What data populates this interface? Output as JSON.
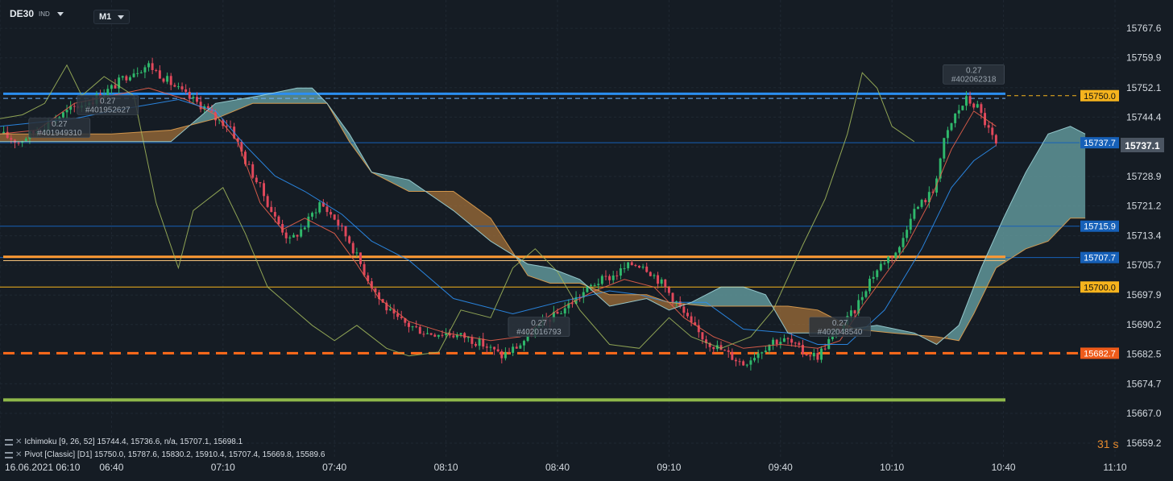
{
  "header": {
    "symbol": "DE30",
    "instrument_type": "IND",
    "timeframe": "M1"
  },
  "chart_data": {
    "type": "candlestick",
    "ylim": [
      15655.0,
      15775.0
    ],
    "y_ticks": [
      "15767.6",
      "15759.9",
      "15752.1",
      "15744.4",
      "15736.6",
      "15728.9",
      "15721.2",
      "15713.4",
      "15705.7",
      "15697.9",
      "15690.2",
      "15682.5",
      "15674.7",
      "15667.0",
      "15659.2"
    ],
    "x_ticks": [
      "16.06.2021 06:10",
      "06:40",
      "07:10",
      "07:40",
      "08:10",
      "08:40",
      "09:10",
      "09:40",
      "10:10",
      "10:40",
      "11:10"
    ],
    "x_axis_minutes": [
      0,
      300
    ],
    "x_tick_minutes": [
      0,
      30,
      60,
      90,
      120,
      150,
      180,
      210,
      240,
      270,
      300
    ],
    "close_path": [
      [
        0,
        15740
      ],
      [
        5,
        15738
      ],
      [
        10,
        15741
      ],
      [
        15,
        15744
      ],
      [
        20,
        15747
      ],
      [
        25,
        15749
      ],
      [
        30,
        15752
      ],
      [
        35,
        15756
      ],
      [
        40,
        15758
      ],
      [
        45,
        15754
      ],
      [
        50,
        15750
      ],
      [
        55,
        15747
      ],
      [
        58,
        15744
      ],
      [
        62,
        15742
      ],
      [
        66,
        15733
      ],
      [
        70,
        15726
      ],
      [
        74,
        15718
      ],
      [
        78,
        15712
      ],
      [
        82,
        15716
      ],
      [
        86,
        15722
      ],
      [
        90,
        15718
      ],
      [
        94,
        15712
      ],
      [
        98,
        15704
      ],
      [
        102,
        15697
      ],
      [
        106,
        15692
      ],
      [
        110,
        15690
      ],
      [
        115,
        15688
      ],
      [
        120,
        15688
      ],
      [
        125,
        15687
      ],
      [
        130,
        15685
      ],
      [
        135,
        15682
      ],
      [
        140,
        15685
      ],
      [
        145,
        15690
      ],
      [
        150,
        15693
      ],
      [
        155,
        15697
      ],
      [
        160,
        15701
      ],
      [
        165,
        15703
      ],
      [
        170,
        15706
      ],
      [
        173,
        15706
      ],
      [
        178,
        15701
      ],
      [
        182,
        15696
      ],
      [
        186,
        15690
      ],
      [
        190,
        15686
      ],
      [
        195,
        15683
      ],
      [
        200,
        15680
      ],
      [
        204,
        15683
      ],
      [
        208,
        15686
      ],
      [
        212,
        15686
      ],
      [
        216,
        15683
      ],
      [
        220,
        15682
      ],
      [
        223,
        15686
      ],
      [
        226,
        15689
      ],
      [
        230,
        15694
      ],
      [
        234,
        15702
      ],
      [
        238,
        15707
      ],
      [
        242,
        15710
      ],
      [
        245,
        15719
      ],
      [
        248,
        15722
      ],
      [
        251,
        15725
      ],
      [
        254,
        15738
      ],
      [
        257,
        15745
      ],
      [
        260,
        15749
      ],
      [
        263,
        15747
      ],
      [
        266,
        15741
      ],
      [
        268,
        15737
      ]
    ],
    "series": [
      {
        "name": "Tenkan",
        "color": "#e8604d",
        "values": [
          [
            0,
            15740
          ],
          [
            10,
            15741
          ],
          [
            20,
            15748
          ],
          [
            30,
            15750
          ],
          [
            40,
            15752
          ],
          [
            50,
            15749
          ],
          [
            58,
            15745
          ],
          [
            64,
            15738
          ],
          [
            70,
            15722
          ],
          [
            76,
            15715
          ],
          [
            82,
            15718
          ],
          [
            90,
            15714
          ],
          [
            96,
            15706
          ],
          [
            102,
            15697
          ],
          [
            110,
            15691
          ],
          [
            120,
            15688
          ],
          [
            132,
            15686
          ],
          [
            140,
            15687
          ],
          [
            150,
            15694
          ],
          [
            160,
            15699
          ],
          [
            168,
            15702
          ],
          [
            176,
            15700
          ],
          [
            184,
            15692
          ],
          [
            192,
            15687
          ],
          [
            200,
            15684
          ],
          [
            210,
            15685
          ],
          [
            220,
            15684
          ],
          [
            226,
            15686
          ],
          [
            232,
            15695
          ],
          [
            238,
            15703
          ],
          [
            244,
            15711
          ],
          [
            250,
            15722
          ],
          [
            256,
            15736
          ],
          [
            262,
            15746
          ],
          [
            268,
            15742
          ]
        ]
      },
      {
        "name": "Kijun",
        "color": "#2b8ef0",
        "values": [
          [
            0,
            15742
          ],
          [
            20,
            15744
          ],
          [
            30,
            15746
          ],
          [
            48,
            15749
          ],
          [
            58,
            15746
          ],
          [
            66,
            15737
          ],
          [
            74,
            15729
          ],
          [
            82,
            15725
          ],
          [
            92,
            15719
          ],
          [
            100,
            15712
          ],
          [
            110,
            15707
          ],
          [
            122,
            15697
          ],
          [
            138,
            15693
          ],
          [
            150,
            15696
          ],
          [
            164,
            15699
          ],
          [
            172,
            15698
          ],
          [
            180,
            15696
          ],
          [
            190,
            15696
          ],
          [
            200,
            15689
          ],
          [
            212,
            15688
          ],
          [
            220,
            15685
          ],
          [
            228,
            15685
          ],
          [
            238,
            15694
          ],
          [
            248,
            15710
          ],
          [
            256,
            15726
          ],
          [
            262,
            15733
          ],
          [
            268,
            15737
          ]
        ]
      },
      {
        "name": "Chikou",
        "color": "#9cb25a",
        "values": [
          [
            0,
            15744
          ],
          [
            6,
            15745
          ],
          [
            12,
            15748
          ],
          [
            18,
            15758
          ],
          [
            22,
            15750
          ],
          [
            28,
            15755
          ],
          [
            36,
            15750
          ],
          [
            42,
            15722
          ],
          [
            48,
            15705
          ],
          [
            52,
            15720
          ],
          [
            60,
            15726
          ],
          [
            66,
            15714
          ],
          [
            72,
            15700
          ],
          [
            78,
            15695
          ],
          [
            84,
            15690
          ],
          [
            90,
            15686
          ],
          [
            96,
            15690
          ],
          [
            104,
            15684
          ],
          [
            110,
            15682
          ],
          [
            118,
            15683
          ],
          [
            124,
            15694
          ],
          [
            132,
            15692
          ],
          [
            138,
            15705
          ],
          [
            144,
            15710
          ],
          [
            150,
            15704
          ],
          [
            156,
            15694
          ],
          [
            164,
            15685
          ],
          [
            172,
            15684
          ],
          [
            180,
            15692
          ],
          [
            186,
            15687
          ],
          [
            194,
            15684
          ],
          [
            202,
            15687
          ],
          [
            208,
            15694
          ],
          [
            216,
            15711
          ],
          [
            222,
            15723
          ],
          [
            228,
            15740
          ],
          [
            232,
            15756
          ],
          [
            236,
            15752
          ],
          [
            240,
            15742
          ],
          [
            246,
            15738
          ]
        ]
      },
      {
        "name": "Senkou A",
        "color": "#e0a050",
        "values": [
          [
            0,
            15740
          ],
          [
            20,
            15740
          ],
          [
            30,
            15740
          ],
          [
            46,
            15741
          ],
          [
            58,
            15744
          ],
          [
            68,
            15748
          ],
          [
            76,
            15748
          ],
          [
            84,
            15748
          ],
          [
            88,
            15748
          ],
          [
            94,
            15738
          ],
          [
            100,
            15730
          ],
          [
            110,
            15725
          ],
          [
            122,
            15725
          ],
          [
            132,
            15718
          ],
          [
            142,
            15703
          ],
          [
            148,
            15701
          ],
          [
            156,
            15701
          ],
          [
            164,
            15698
          ],
          [
            174,
            15698
          ],
          [
            180,
            15696
          ],
          [
            190,
            15695
          ],
          [
            200,
            15695
          ],
          [
            212,
            15695
          ],
          [
            220,
            15694
          ],
          [
            230,
            15689
          ],
          [
            240,
            15688
          ],
          [
            252,
            15687
          ],
          [
            258,
            15686
          ],
          [
            262,
            15693
          ],
          [
            268,
            15705
          ],
          [
            276,
            15710
          ],
          [
            282,
            15712
          ],
          [
            288,
            15718
          ],
          [
            292,
            15718
          ]
        ]
      },
      {
        "name": "Senkou B",
        "color": "#9fd4d8",
        "values": [
          [
            0,
            15738
          ],
          [
            20,
            15738
          ],
          [
            30,
            15738
          ],
          [
            46,
            15738
          ],
          [
            58,
            15748
          ],
          [
            70,
            15750
          ],
          [
            80,
            15752
          ],
          [
            84,
            15752
          ],
          [
            88,
            15748
          ],
          [
            94,
            15740
          ],
          [
            100,
            15730
          ],
          [
            110,
            15728
          ],
          [
            122,
            15720
          ],
          [
            132,
            15712
          ],
          [
            142,
            15706
          ],
          [
            148,
            15705
          ],
          [
            156,
            15702
          ],
          [
            164,
            15695
          ],
          [
            174,
            15697
          ],
          [
            180,
            15694
          ],
          [
            186,
            15696
          ],
          [
            190,
            15698
          ],
          [
            194,
            15700
          ],
          [
            200,
            15700
          ],
          [
            206,
            15698
          ],
          [
            212,
            15688
          ],
          [
            220,
            15688
          ],
          [
            228,
            15689
          ],
          [
            236,
            15690
          ],
          [
            246,
            15688
          ],
          [
            252,
            15685
          ],
          [
            258,
            15690
          ],
          [
            264,
            15705
          ],
          [
            270,
            15718
          ],
          [
            276,
            15730
          ],
          [
            282,
            15740
          ],
          [
            288,
            15742
          ],
          [
            292,
            15740
          ]
        ]
      }
    ],
    "levels": [
      {
        "label": "15750.0",
        "value": 15750.0,
        "color": "#f5b31d",
        "style": "dashed"
      },
      {
        "label": "15737.7",
        "value": 15737.7,
        "color": "#1660b8",
        "style": "solid"
      },
      {
        "label": "15715.9",
        "value": 15715.9,
        "color": "#1660b8",
        "style": "solid"
      },
      {
        "label": "15707.7",
        "value": 15707.7,
        "color": "#1660b8",
        "style": "solid"
      },
      {
        "label": "15700.0",
        "value": 15700.0,
        "color": "#f5b31d",
        "style": "solid"
      },
      {
        "label": "15682.7",
        "value": 15682.7,
        "color": "#ef5b1a",
        "style": "dashed"
      }
    ],
    "current_price": {
      "label": "15737.1",
      "value": 15737.1
    },
    "order_lines": [
      {
        "value": 15750.5,
        "color": "#2b8ef0",
        "style": "solid"
      },
      {
        "value": 15707.9,
        "color": "#ff9a33",
        "style": "solid"
      },
      {
        "value": 15682.7,
        "color": "#ff6a1a",
        "style": "dashed"
      },
      {
        "value": 15670.5,
        "color": "#8fb84a",
        "style": "solid"
      }
    ],
    "trade_labels": [
      {
        "size": "0.27",
        "ticket": "#401952627",
        "t": 29,
        "y": 15748.0
      },
      {
        "size": "0.27",
        "ticket": "#401949310",
        "t": 16,
        "y": 15742.0
      },
      {
        "size": "0.27",
        "ticket": "#402016793",
        "t": 145,
        "y": 15690.0
      },
      {
        "size": "0.27",
        "ticket": "#402048540",
        "t": 226,
        "y": 15690.0
      },
      {
        "size": "0.27",
        "ticket": "#402062318",
        "t": 262,
        "y": 15756.0
      }
    ],
    "countdown": "31 s"
  },
  "indicators": [
    {
      "name": "Ichimoku",
      "text": "Ichimoku  [9, 26, 52]  15744.4,  15736.6,  n/a,  15707.1,  15698.1"
    },
    {
      "name": "Pivot",
      "text": "Pivot  [Classic]  [D1]  15750.0,  15787.6,  15830.2,  15910.4,  15707.4,  15669.8,  15589.6"
    }
  ]
}
